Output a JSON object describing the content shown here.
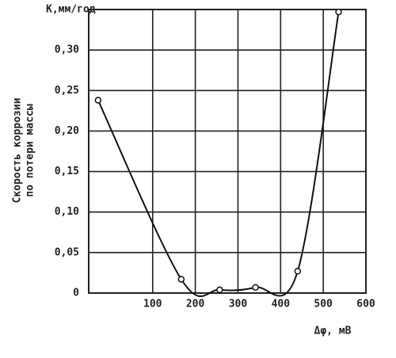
{
  "chart_data": {
    "type": "line",
    "y_label_top": "К,мм/год",
    "y_label": [
      "Скорость коррозии",
      "по потери массы"
    ],
    "x_label": "Δφ, мВ",
    "x": [
      -28,
      167,
      257,
      341,
      440,
      536
    ],
    "series": [
      {
        "color": "#111",
        "values": [
          0.238,
          0.017,
          0.004,
          0.007,
          0.027,
          0.347
        ]
      }
    ],
    "xlim": [
      -50,
      600
    ],
    "xticks": [
      100,
      200,
      300,
      400,
      500,
      600
    ],
    "ylim": [
      0,
      0.35
    ],
    "yticks": [
      0,
      {
        "value": 0.05,
        "label": "0,05"
      },
      {
        "value": 0.1,
        "label": "0,10"
      },
      {
        "value": 0.15,
        "label": "0,15"
      },
      {
        "value": 0.2,
        "label": "0,20"
      },
      {
        "value": 0.25,
        "label": "0,25"
      },
      {
        "value": 0.3,
        "label": "0,30"
      }
    ],
    "grid": true
  }
}
